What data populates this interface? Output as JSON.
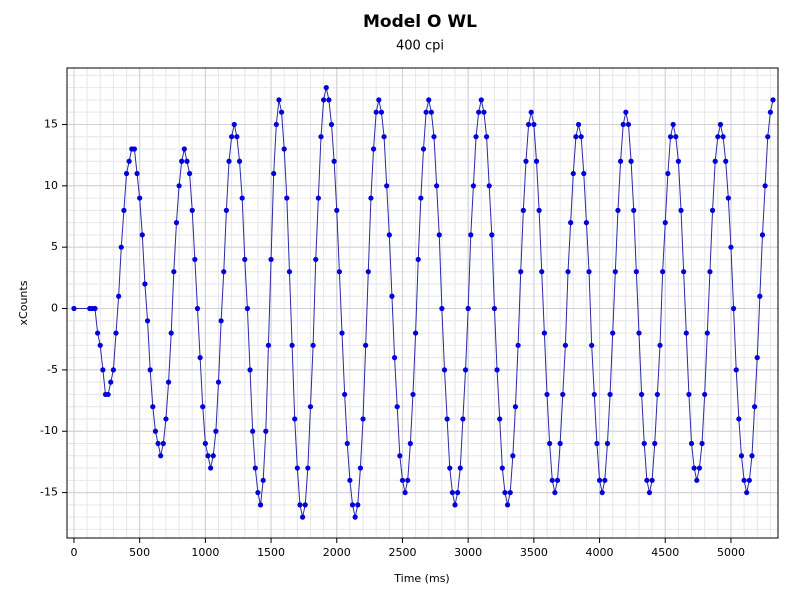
{
  "chart_data": {
    "type": "scatter",
    "title": "Model O WL",
    "subtitle": "400 cpi",
    "x_label": "Time (ms)",
    "y_label": "xCounts",
    "x": [
      0,
      120,
      140,
      160,
      180,
      200,
      220,
      240,
      260,
      280,
      300,
      320,
      340,
      360,
      380,
      400,
      420,
      440,
      460,
      480,
      500,
      520,
      540,
      560,
      580,
      600,
      620,
      640,
      660,
      680,
      700,
      720,
      740,
      760,
      780,
      800,
      820,
      840,
      860,
      880,
      900,
      920,
      940,
      960,
      980,
      1000,
      1020,
      1040,
      1060,
      1080,
      1100,
      1120,
      1140,
      1160,
      1180,
      1200,
      1220,
      1240,
      1260,
      1280,
      1300,
      1320,
      1340,
      1360,
      1380,
      1400,
      1420,
      1440,
      1460,
      1480,
      1500,
      1520,
      1540,
      1560,
      1580,
      1600,
      1620,
      1640,
      1660,
      1680,
      1700,
      1720,
      1740,
      1760,
      1780,
      1800,
      1820,
      1840,
      1860,
      1880,
      1900,
      1920,
      1940,
      1960,
      1980,
      2000,
      2020,
      2040,
      2060,
      2080,
      2100,
      2120,
      2140,
      2160,
      2180,
      2200,
      2220,
      2240,
      2260,
      2280,
      2300,
      2320,
      2340,
      2360,
      2380,
      2400,
      2420,
      2440,
      2460,
      2480,
      2500,
      2520,
      2540,
      2560,
      2580,
      2600,
      2620,
      2640,
      2660,
      2680,
      2700,
      2720,
      2740,
      2760,
      2780,
      2800,
      2820,
      2840,
      2860,
      2880,
      2900,
      2920,
      2940,
      2960,
      2980,
      3000,
      3020,
      3040,
      3060,
      3080,
      3100,
      3120,
      3140,
      3160,
      3180,
      3200,
      3220,
      3240,
      3260,
      3280,
      3300,
      3320,
      3340,
      3360,
      3380,
      3400,
      3420,
      3440,
      3460,
      3480,
      3500,
      3520,
      3540,
      3560,
      3580,
      3600,
      3620,
      3640,
      3660,
      3680,
      3700,
      3720,
      3740,
      3760,
      3780,
      3800,
      3820,
      3840,
      3860,
      3880,
      3900,
      3920,
      3940,
      3960,
      3980,
      4000,
      4020,
      4040,
      4060,
      4080,
      4100,
      4120,
      4140,
      4160,
      4180,
      4200,
      4220,
      4240,
      4260,
      4280,
      4300,
      4320,
      4340,
      4360,
      4380,
      4400,
      4420,
      4440,
      4460,
      4480,
      4500,
      4520,
      4540,
      4560,
      4580,
      4600,
      4620,
      4640,
      4660,
      4680,
      4700,
      4720,
      4740,
      4760,
      4780,
      4800,
      4820,
      4840,
      4860,
      4880,
      4900,
      4920,
      4940,
      4960,
      4980,
      5000,
      5020,
      5040,
      5060,
      5080,
      5100,
      5120,
      5140,
      5160,
      5180,
      5200,
      5220,
      5240,
      5260,
      5280,
      5300,
      5320
    ],
    "values": [
      0,
      0,
      0,
      0,
      -2,
      -3,
      -5,
      -7,
      -7,
      -6,
      -5,
      -2,
      1,
      5,
      8,
      11,
      12,
      13,
      13,
      11,
      9,
      6,
      2,
      -1,
      -5,
      -8,
      -10,
      -11,
      -12,
      -11,
      -9,
      -6,
      -2,
      3,
      7,
      10,
      12,
      13,
      12,
      11,
      8,
      4,
      0,
      -4,
      -8,
      -11,
      -12,
      -13,
      -12,
      -10,
      -6,
      -1,
      3,
      8,
      12,
      14,
      15,
      14,
      12,
      9,
      4,
      0,
      -5,
      -10,
      -13,
      -15,
      -16,
      -14,
      -10,
      -3,
      4,
      11,
      15,
      17,
      16,
      13,
      9,
      3,
      -3,
      -9,
      -13,
      -16,
      -17,
      -16,
      -13,
      -8,
      -3,
      4,
      9,
      14,
      17,
      18,
      17,
      15,
      12,
      8,
      3,
      -2,
      -7,
      -11,
      -14,
      -16,
      -17,
      -16,
      -13,
      -9,
      -3,
      3,
      9,
      13,
      16,
      17,
      16,
      14,
      10,
      6,
      1,
      -4,
      -8,
      -12,
      -14,
      -15,
      -14,
      -11,
      -7,
      -2,
      4,
      9,
      13,
      16,
      17,
      16,
      14,
      10,
      6,
      0,
      -5,
      -9,
      -13,
      -15,
      -16,
      -15,
      -13,
      -9,
      -5,
      0,
      6,
      10,
      14,
      16,
      17,
      16,
      14,
      10,
      6,
      0,
      -5,
      -9,
      -13,
      -15,
      -16,
      -15,
      -12,
      -8,
      -3,
      3,
      8,
      12,
      15,
      16,
      15,
      12,
      8,
      3,
      -2,
      -7,
      -11,
      -14,
      -15,
      -14,
      -11,
      -7,
      -3,
      3,
      7,
      11,
      14,
      15,
      14,
      11,
      7,
      3,
      -3,
      -7,
      -11,
      -14,
      -15,
      -14,
      -11,
      -7,
      -2,
      3,
      8,
      12,
      15,
      16,
      15,
      12,
      8,
      3,
      -2,
      -7,
      -11,
      -14,
      -15,
      -14,
      -11,
      -7,
      -3,
      3,
      7,
      11,
      14,
      15,
      14,
      12,
      8,
      3,
      -2,
      -7,
      -11,
      -13,
      -14,
      -13,
      -11,
      -7,
      -2,
      3,
      8,
      12,
      14,
      15,
      14,
      12,
      9,
      5,
      0,
      -5,
      -9,
      -12,
      -14,
      -15,
      -14,
      -12,
      -8,
      -4,
      1,
      6,
      10,
      14,
      16,
      17
    ],
    "color": "#0000dd",
    "line_color": "#2a2aa8",
    "xlim": [
      -53,
      5358
    ],
    "xticks": [
      0,
      500,
      1000,
      1500,
      2000,
      2500,
      3000,
      3500,
      4000,
      4500,
      5000
    ],
    "ylim": [
      -18.7,
      19.6
    ],
    "yticks": [
      -15,
      -10,
      -5,
      0,
      5,
      10,
      15
    ],
    "grid": true
  }
}
